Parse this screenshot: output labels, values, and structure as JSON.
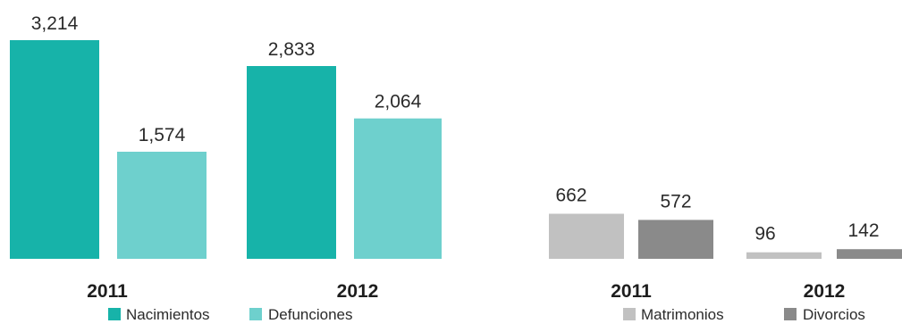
{
  "chart_data": [
    {
      "type": "bar",
      "categories": [
        "2011",
        "2012"
      ],
      "series": [
        {
          "name": "Nacimientos",
          "values": [
            3214,
            2833
          ],
          "labels": [
            "3,214",
            "2,833"
          ],
          "color": "#17b3a9"
        },
        {
          "name": "Defunciones",
          "values": [
            1574,
            2064
          ],
          "labels": [
            "1,574",
            "2,064"
          ],
          "color": "#6ed0cd"
        }
      ],
      "ylim": [
        0,
        3300
      ],
      "legend": [
        "Nacimientos",
        "Defunciones"
      ],
      "legend_position": "bottom",
      "grid": false
    },
    {
      "type": "bar",
      "categories": [
        "2011",
        "2012"
      ],
      "series": [
        {
          "name": "Matrimonios",
          "values": [
            662,
            96
          ],
          "labels": [
            "662",
            "96"
          ],
          "color": "#c1c1c1"
        },
        {
          "name": "Divorcios",
          "values": [
            572,
            142
          ],
          "labels": [
            "572",
            "142"
          ],
          "color": "#8a8a8a"
        }
      ],
      "ylim": [
        0,
        3300
      ],
      "legend": [
        "Matrimonios",
        "Divorcios"
      ],
      "legend_position": "bottom",
      "grid": false
    }
  ]
}
